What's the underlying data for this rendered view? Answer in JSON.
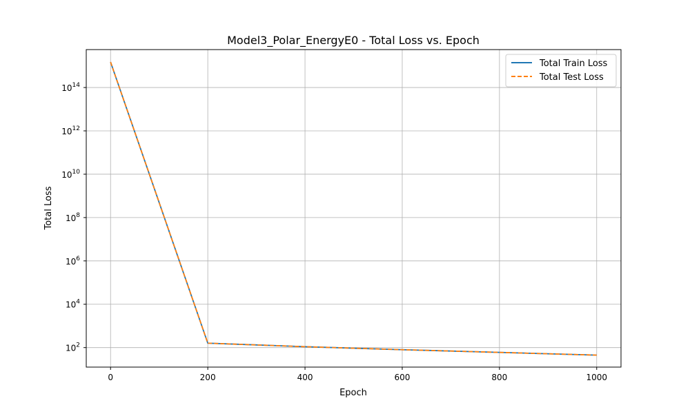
{
  "chart_data": {
    "type": "line",
    "title": "Model3_Polar_EnergyE0 - Total Loss vs. Epoch",
    "xlabel": "Epoch",
    "ylabel": "Total Loss",
    "yscale": "log",
    "xlim": [
      -50,
      1050
    ],
    "ylim_exponent": [
      1.1,
      15.75
    ],
    "x_ticks": [
      0,
      200,
      400,
      600,
      800,
      1000
    ],
    "x_tick_labels": [
      "0",
      "200",
      "400",
      "600",
      "800",
      "1000"
    ],
    "y_ticks_exponent": [
      2,
      4,
      6,
      8,
      10,
      12,
      14
    ],
    "y_tick_labels": [
      {
        "base": "10",
        "exp": "2"
      },
      {
        "base": "10",
        "exp": "4"
      },
      {
        "base": "10",
        "exp": "6"
      },
      {
        "base": "10",
        "exp": "8"
      },
      {
        "base": "10",
        "exp": "10"
      },
      {
        "base": "10",
        "exp": "12"
      },
      {
        "base": "10",
        "exp": "14"
      }
    ],
    "grid": true,
    "legend_position": "upper right",
    "series": [
      {
        "name": "Total Train Loss",
        "color": "#1f77b4",
        "style": "solid",
        "x": [
          0,
          200,
          400,
          600,
          800,
          1000
        ],
        "y": [
          1500000000000000.0,
          160,
          110,
          80,
          60,
          45
        ]
      },
      {
        "name": "Total Test Loss",
        "color": "#ff7f0e",
        "style": "dashed",
        "x": [
          0,
          200,
          400,
          600,
          800,
          1000
        ],
        "y": [
          1500000000000000.0,
          160,
          110,
          80,
          60,
          45
        ]
      }
    ]
  }
}
